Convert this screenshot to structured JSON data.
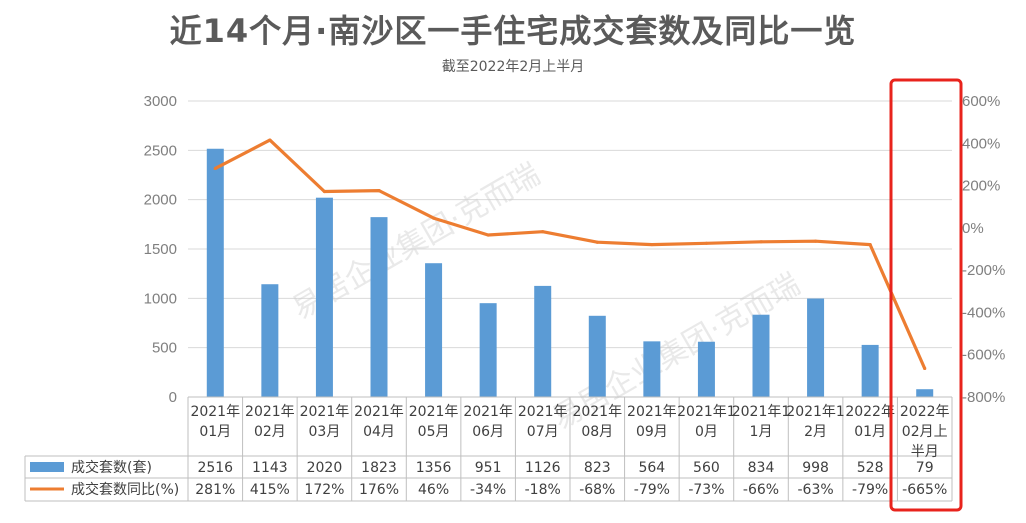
{
  "chart_data": {
    "type": "bar",
    "title": "近14个月·南沙区一手住宅成交套数及同比一览",
    "subtitle": "截至2022年2月上半月",
    "categories": [
      [
        "2021年",
        "01月"
      ],
      [
        "2021年",
        "02月"
      ],
      [
        "2021年",
        "03月"
      ],
      [
        "2021年",
        "04月"
      ],
      [
        "2021年",
        "05月"
      ],
      [
        "2021年",
        "06月"
      ],
      [
        "2021年",
        "07月"
      ],
      [
        "2021年",
        "08月"
      ],
      [
        "2021年",
        "09月"
      ],
      [
        "2021年1",
        "0月"
      ],
      [
        "2021年1",
        "1月"
      ],
      [
        "2021年1",
        "2月"
      ],
      [
        "2022年",
        "01月"
      ],
      [
        "2022年",
        "02月上",
        "半月"
      ]
    ],
    "series": [
      {
        "name": "成交套数(套)",
        "type": "bar",
        "axis": "left",
        "color": "#5b9bd5",
        "values": [
          2516,
          1143,
          2020,
          1823,
          1356,
          951,
          1126,
          823,
          564,
          560,
          834,
          998,
          528,
          79
        ],
        "labels": [
          "2516",
          "1143",
          "2020",
          "1823",
          "1356",
          "951",
          "1126",
          "823",
          "564",
          "560",
          "834",
          "998",
          "528",
          "79"
        ]
      },
      {
        "name": "成交套数同比(%)",
        "type": "line",
        "axis": "right",
        "color": "#ed7d31",
        "values": [
          281,
          415,
          172,
          176,
          46,
          -34,
          -18,
          -68,
          -79,
          -73,
          -66,
          -63,
          -79,
          -665
        ],
        "labels": [
          "281%",
          "415%",
          "172%",
          "176%",
          "46%",
          "-34%",
          "-18%",
          "-68%",
          "-79%",
          "-73%",
          "-66%",
          "-63%",
          "-79%",
          "-665%"
        ]
      }
    ],
    "y_left": {
      "min": 0,
      "max": 3000,
      "ticks": [
        "0",
        "500",
        "1000",
        "1500",
        "2000",
        "2500",
        "3000"
      ]
    },
    "y_right": {
      "min": -800,
      "max": 600,
      "ticks": [
        "-800%",
        "-600%",
        "-400%",
        "-200%",
        "0%",
        "200%",
        "400%",
        "600%"
      ]
    },
    "gridlines": true,
    "data_table": true,
    "highlight": {
      "category_index": 13,
      "color": "#e8231c"
    },
    "watermark": "易居企业集团·克而瑞"
  }
}
